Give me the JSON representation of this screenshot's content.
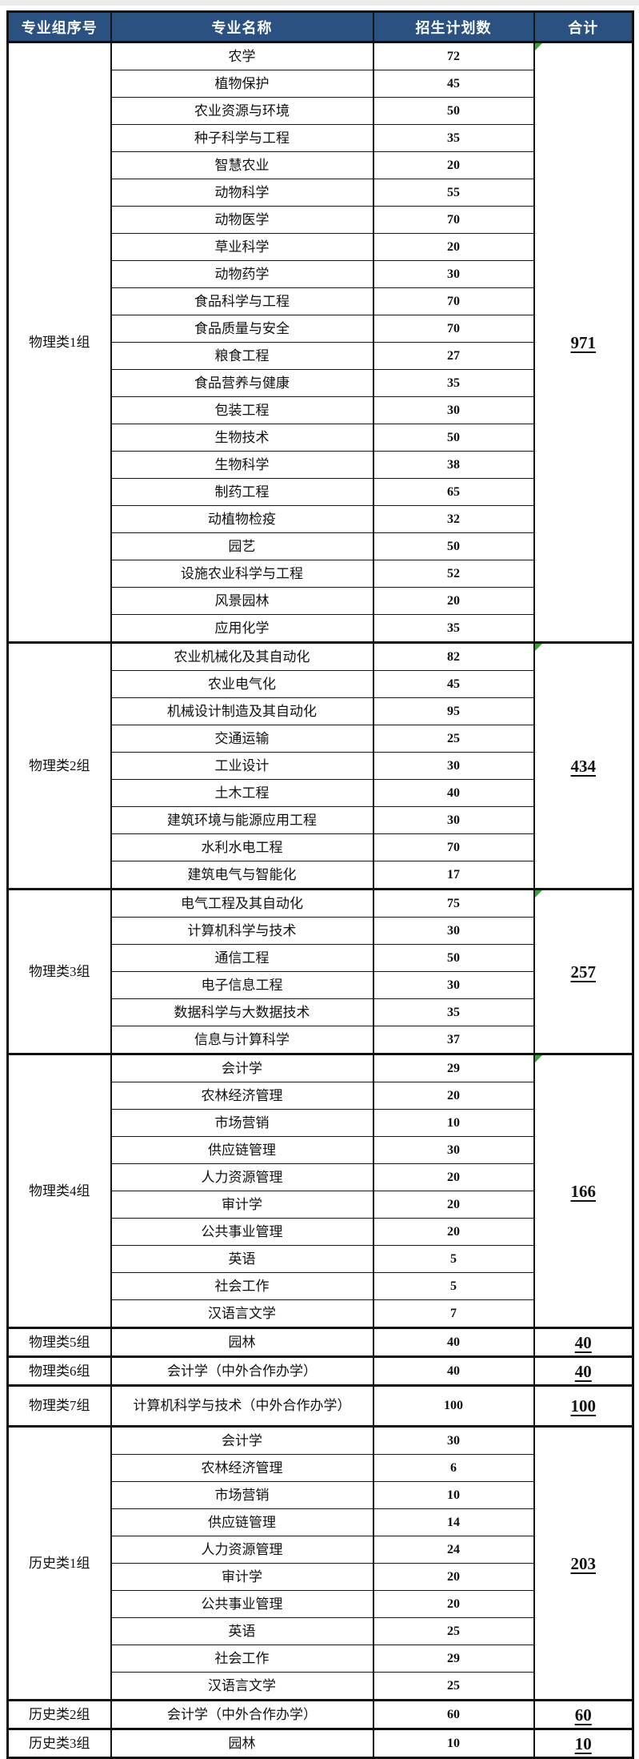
{
  "colors": {
    "header_bg": "#2B5180",
    "header_text": "#F7FAFD",
    "border": "#161616",
    "marker_green": "#3BA13B",
    "body_text": "#111111"
  },
  "chart_data": {
    "type": "table",
    "columns": [
      "专业组序号",
      "专业名称",
      "招生计划数",
      "合计"
    ],
    "groups": [
      {
        "group": "物理类1组",
        "total": "971",
        "marker": true,
        "majors": [
          {
            "name": "农学",
            "plan": "72"
          },
          {
            "name": "植物保护",
            "plan": "45"
          },
          {
            "name": "农业资源与环境",
            "plan": "50"
          },
          {
            "name": "种子科学与工程",
            "plan": "35"
          },
          {
            "name": "智慧农业",
            "plan": "20"
          },
          {
            "name": "动物科学",
            "plan": "55"
          },
          {
            "name": "动物医学",
            "plan": "70"
          },
          {
            "name": "草业科学",
            "plan": "20"
          },
          {
            "name": "动物药学",
            "plan": "30"
          },
          {
            "name": "食品科学与工程",
            "plan": "70"
          },
          {
            "name": "食品质量与安全",
            "plan": "70"
          },
          {
            "name": "粮食工程",
            "plan": "27"
          },
          {
            "name": "食品营养与健康",
            "plan": "35"
          },
          {
            "name": "包装工程",
            "plan": "30"
          },
          {
            "name": "生物技术",
            "plan": "50"
          },
          {
            "name": "生物科学",
            "plan": "38"
          },
          {
            "name": "制药工程",
            "plan": "65"
          },
          {
            "name": "动植物检疫",
            "plan": "32"
          },
          {
            "name": "园艺",
            "plan": "50"
          },
          {
            "name": "设施农业科学与工程",
            "plan": "52"
          },
          {
            "name": "风景园林",
            "plan": "20"
          },
          {
            "name": "应用化学",
            "plan": "35"
          }
        ]
      },
      {
        "group": "物理类2组",
        "total": "434",
        "marker": true,
        "majors": [
          {
            "name": "农业机械化及其自动化",
            "plan": "82"
          },
          {
            "name": "农业电气化",
            "plan": "45"
          },
          {
            "name": "机械设计制造及其自动化",
            "plan": "95"
          },
          {
            "name": "交通运输",
            "plan": "25"
          },
          {
            "name": "工业设计",
            "plan": "30"
          },
          {
            "name": "土木工程",
            "plan": "40"
          },
          {
            "name": "建筑环境与能源应用工程",
            "plan": "30"
          },
          {
            "name": "水利水电工程",
            "plan": "70"
          },
          {
            "name": "建筑电气与智能化",
            "plan": "17"
          }
        ]
      },
      {
        "group": "物理类3组",
        "total": "257",
        "marker": true,
        "majors": [
          {
            "name": "电气工程及其自动化",
            "plan": "75"
          },
          {
            "name": "计算机科学与技术",
            "plan": "30"
          },
          {
            "name": "通信工程",
            "plan": "50"
          },
          {
            "name": "电子信息工程",
            "plan": "30"
          },
          {
            "name": "数据科学与大数据技术",
            "plan": "35"
          },
          {
            "name": "信息与计算科学",
            "plan": "37"
          }
        ]
      },
      {
        "group": "物理类4组",
        "total": "166",
        "marker": true,
        "majors": [
          {
            "name": "会计学",
            "plan": "29"
          },
          {
            "name": "农林经济管理",
            "plan": "20"
          },
          {
            "name": "市场营销",
            "plan": "10"
          },
          {
            "name": "供应链管理",
            "plan": "30"
          },
          {
            "name": "人力资源管理",
            "plan": "20"
          },
          {
            "name": "审计学",
            "plan": "20"
          },
          {
            "name": "公共事业管理",
            "plan": "20"
          },
          {
            "name": "英语",
            "plan": "5"
          },
          {
            "name": "社会工作",
            "plan": "5"
          },
          {
            "name": "汉语言文学",
            "plan": "7"
          }
        ]
      },
      {
        "group": "物理类5组",
        "total": "40",
        "marker": false,
        "majors": [
          {
            "name": "园林",
            "plan": "40"
          }
        ]
      },
      {
        "group": "物理类6组",
        "total": "40",
        "marker": false,
        "majors": [
          {
            "name": "会计学（中外合作办学）",
            "plan": "40"
          }
        ]
      },
      {
        "group": "物理类7组",
        "total": "100",
        "marker": false,
        "majors": [
          {
            "name": "计算机科学与技术（中外合作办学）",
            "plan": "100"
          }
        ]
      },
      {
        "group": "历史类1组",
        "total": "203",
        "marker": false,
        "majors": [
          {
            "name": "会计学",
            "plan": "30"
          },
          {
            "name": "农林经济管理",
            "plan": "6"
          },
          {
            "name": "市场营销",
            "plan": "10"
          },
          {
            "name": "供应链管理",
            "plan": "14"
          },
          {
            "name": "人力资源管理",
            "plan": "24"
          },
          {
            "name": "审计学",
            "plan": "20"
          },
          {
            "name": "公共事业管理",
            "plan": "20"
          },
          {
            "name": "英语",
            "plan": "25"
          },
          {
            "name": "社会工作",
            "plan": "29"
          },
          {
            "name": "汉语言文学",
            "plan": "25"
          }
        ]
      },
      {
        "group": "历史类2组",
        "total": "60",
        "marker": false,
        "majors": [
          {
            "name": "会计学（中外合作办学）",
            "plan": "60"
          }
        ]
      },
      {
        "group": "历史类3组",
        "total": "10",
        "marker": false,
        "majors": [
          {
            "name": "园林",
            "plan": "10"
          }
        ]
      }
    ]
  }
}
